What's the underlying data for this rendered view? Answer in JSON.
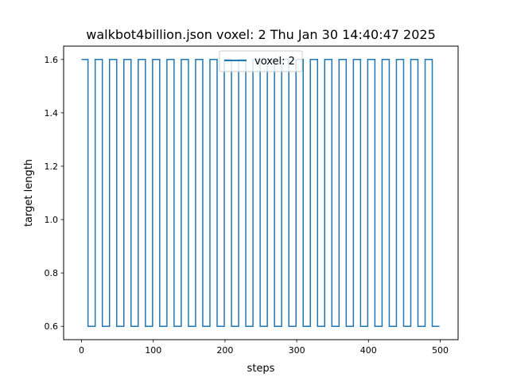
{
  "chart_data": {
    "type": "line",
    "title": "walkbot4billion.json voxel: 2 Thu Jan 30 14:40:47 2025",
    "xlabel": "steps",
    "ylabel": "target length",
    "xlim": [
      -25,
      525
    ],
    "ylim": [
      0.55,
      1.65
    ],
    "x_ticks": [
      0,
      100,
      200,
      300,
      400,
      500
    ],
    "x_tick_labels": [
      "0",
      "100",
      "200",
      "300",
      "400",
      "500"
    ],
    "y_ticks": [
      0.6,
      0.8,
      1.0,
      1.2,
      1.4,
      1.6
    ],
    "y_tick_labels": [
      "0.6",
      "0.8",
      "1.0",
      "1.2",
      "1.4",
      "1.6"
    ],
    "grid": false,
    "legend_position": "top-center",
    "series": [
      {
        "name": "voxel: 2",
        "color": "#1f77b4",
        "step_style": "square-wave",
        "x": [
          0,
          9,
          9,
          19,
          19,
          29,
          29,
          39,
          39,
          49,
          49,
          59,
          59,
          69,
          69,
          79,
          79,
          89,
          89,
          99,
          99,
          109,
          109,
          119,
          119,
          129,
          129,
          139,
          139,
          149,
          149,
          159,
          159,
          169,
          169,
          179,
          179,
          189,
          189,
          199,
          199,
          209,
          209,
          219,
          219,
          229,
          229,
          239,
          239,
          249,
          249,
          259,
          259,
          269,
          269,
          279,
          279,
          289,
          289,
          299,
          299,
          309,
          309,
          319,
          319,
          329,
          329,
          339,
          339,
          349,
          349,
          359,
          359,
          369,
          369,
          379,
          379,
          389,
          389,
          399,
          399,
          409,
          409,
          419,
          419,
          429,
          429,
          439,
          439,
          449,
          449,
          459,
          459,
          469,
          469,
          479,
          479,
          489,
          489,
          499,
          499
        ],
        "y": [
          1.6,
          1.6,
          0.6,
          0.6,
          1.6,
          1.6,
          0.6,
          0.6,
          1.6,
          1.6,
          0.6,
          0.6,
          1.6,
          1.6,
          0.6,
          0.6,
          1.6,
          1.6,
          0.6,
          0.6,
          1.6,
          1.6,
          0.6,
          0.6,
          1.6,
          1.6,
          0.6,
          0.6,
          1.6,
          1.6,
          0.6,
          0.6,
          1.6,
          1.6,
          0.6,
          0.6,
          1.6,
          1.6,
          0.6,
          0.6,
          1.6,
          1.6,
          0.6,
          0.6,
          1.6,
          1.6,
          0.6,
          0.6,
          1.6,
          1.6,
          0.6,
          0.6,
          1.6,
          1.6,
          0.6,
          0.6,
          1.6,
          1.6,
          0.6,
          0.6,
          1.6,
          1.6,
          0.6,
          0.6,
          1.6,
          1.6,
          0.6,
          0.6,
          1.6,
          1.6,
          0.6,
          0.6,
          1.6,
          1.6,
          0.6,
          0.6,
          1.6,
          1.6,
          0.6,
          0.6,
          1.6,
          1.6,
          0.6,
          0.6,
          1.6,
          1.6,
          0.6,
          0.6,
          1.6,
          1.6,
          0.6,
          0.6,
          1.6,
          1.6,
          0.6,
          0.6,
          1.6,
          1.6,
          0.6,
          0.6,
          0.6
        ]
      }
    ]
  }
}
